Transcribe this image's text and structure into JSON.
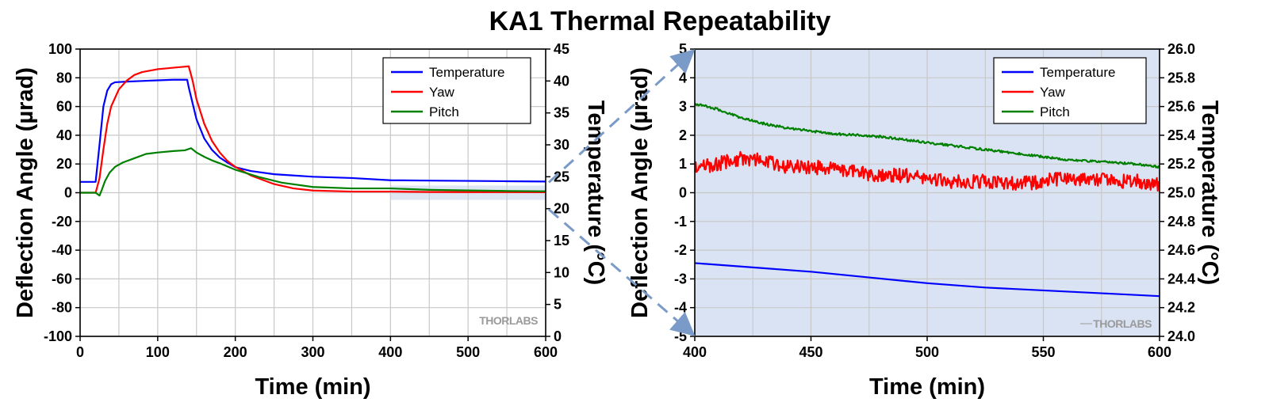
{
  "figure": {
    "title": "KA1 Thermal Repeatability",
    "watermark": "THORLABS",
    "colors": {
      "temperature": "#0000ff",
      "yaw": "#ff0000",
      "pitch": "#008000",
      "inset_background": "#dae3f3",
      "grid": "#c8c8c8",
      "arrow": "#7a9ac8"
    }
  },
  "chart_data": [
    {
      "id": "full",
      "type": "line",
      "title": "",
      "xlabel": "Time (min)",
      "ylabel": "Deflection Angle (µrad)",
      "y2label": "Temperature (°C)",
      "xlim": [
        0,
        600
      ],
      "ylim": [
        -100,
        100
      ],
      "y2lim": [
        0,
        45
      ],
      "xticks": [
        0,
        100,
        200,
        300,
        400,
        500,
        600
      ],
      "yticks": [
        -100,
        -80,
        -60,
        -40,
        -20,
        0,
        20,
        40,
        60,
        80,
        100
      ],
      "y2ticks": [
        0,
        5,
        10,
        15,
        20,
        25,
        30,
        35,
        40,
        45
      ],
      "grid": true,
      "legend_position": "top-right",
      "highlight_region": {
        "x": [
          400,
          600
        ],
        "y": [
          -5,
          5
        ]
      },
      "series": [
        {
          "name": "Temperature",
          "axis": "right",
          "color": "#0000ff",
          "x": [
            0,
            20,
            25,
            30,
            35,
            40,
            45,
            60,
            80,
            100,
            120,
            138,
            140,
            145,
            150,
            160,
            170,
            180,
            190,
            200,
            220,
            250,
            300,
            350,
            400,
            450,
            500,
            550,
            600
          ],
          "y": [
            24.2,
            24.2,
            30.0,
            36.0,
            38.5,
            39.5,
            39.8,
            39.9,
            40.0,
            40.1,
            40.2,
            40.2,
            39.0,
            36.5,
            34.0,
            31.0,
            29.2,
            28.0,
            27.2,
            26.5,
            25.9,
            25.4,
            25.0,
            24.8,
            24.45,
            24.4,
            24.35,
            24.3,
            24.25
          ]
        },
        {
          "name": "Yaw",
          "axis": "left",
          "color": "#ff0000",
          "x": [
            0,
            20,
            25,
            30,
            35,
            40,
            50,
            60,
            70,
            80,
            100,
            120,
            130,
            140,
            145,
            150,
            160,
            170,
            180,
            190,
            200,
            220,
            250,
            275,
            300,
            350,
            400,
            450,
            500,
            550,
            600
          ],
          "y": [
            0,
            0,
            10,
            30,
            48,
            60,
            72,
            78,
            82,
            84,
            86,
            87,
            87.5,
            88,
            78,
            65,
            48,
            36,
            28,
            22,
            18,
            12,
            6,
            3,
            1.5,
            0.8,
            0.8,
            0.5,
            0.4,
            0.4,
            0.3
          ]
        },
        {
          "name": "Pitch",
          "axis": "left",
          "color": "#008000",
          "x": [
            0,
            20,
            25,
            28,
            32,
            38,
            45,
            55,
            70,
            85,
            100,
            120,
            135,
            143,
            150,
            160,
            170,
            180,
            200,
            230,
            260,
            300,
            350,
            400,
            450,
            500,
            550,
            600
          ],
          "y": [
            0,
            0,
            -2,
            2,
            8,
            14,
            18,
            21,
            24,
            27,
            28,
            29,
            29.5,
            31,
            28,
            25,
            22.5,
            20.5,
            16,
            11,
            7,
            4,
            3,
            3,
            2,
            1.6,
            1.2,
            1
          ]
        }
      ]
    },
    {
      "id": "zoom",
      "type": "line",
      "title": "",
      "xlabel": "Time (min)",
      "ylabel": "Deflection Angle (µrad)",
      "y2label": "Temperature (°C)",
      "xlim": [
        400,
        600
      ],
      "ylim": [
        -5,
        5
      ],
      "y2lim": [
        24.0,
        26.0
      ],
      "xticks": [
        400,
        450,
        500,
        550,
        600
      ],
      "yticks": [
        -5,
        -4,
        -3,
        -2,
        -1,
        0,
        1,
        2,
        3,
        4,
        5
      ],
      "y2ticks": [
        "24.0",
        "24.2",
        "24.4",
        "24.6",
        "24.8",
        "25.0",
        "25.2",
        "25.4",
        "25.6",
        "25.8",
        "26.0"
      ],
      "grid": true,
      "legend_position": "top-right",
      "series": [
        {
          "name": "Temperature",
          "axis": "right",
          "color": "#0000ff",
          "x": [
            400,
            425,
            450,
            475,
            500,
            525,
            550,
            575,
            600
          ],
          "y": [
            24.51,
            24.48,
            24.45,
            24.41,
            24.37,
            24.34,
            24.32,
            24.3,
            24.28
          ]
        },
        {
          "name": "Yaw",
          "axis": "left",
          "color": "#ff0000",
          "x": [
            400,
            410,
            420,
            430,
            440,
            450,
            460,
            470,
            480,
            490,
            500,
            510,
            520,
            530,
            540,
            550,
            560,
            570,
            580,
            590,
            600
          ],
          "y": [
            0.9,
            1.0,
            1.2,
            1.1,
            0.9,
            0.9,
            0.8,
            0.7,
            0.6,
            0.6,
            0.5,
            0.4,
            0.4,
            0.4,
            0.3,
            0.4,
            0.5,
            0.5,
            0.4,
            0.4,
            0.3
          ],
          "noise_amplitude": 0.25
        },
        {
          "name": "Pitch",
          "axis": "left",
          "color": "#008000",
          "x": [
            400,
            410,
            420,
            430,
            440,
            450,
            460,
            470,
            480,
            490,
            500,
            510,
            520,
            530,
            540,
            550,
            560,
            570,
            580,
            590,
            600
          ],
          "y": [
            3.1,
            2.9,
            2.6,
            2.4,
            2.25,
            2.15,
            2.05,
            2.0,
            1.95,
            1.85,
            1.75,
            1.65,
            1.55,
            1.45,
            1.35,
            1.25,
            1.15,
            1.1,
            1.05,
            1.0,
            0.9
          ],
          "noise_amplitude": 0.04
        }
      ]
    }
  ]
}
